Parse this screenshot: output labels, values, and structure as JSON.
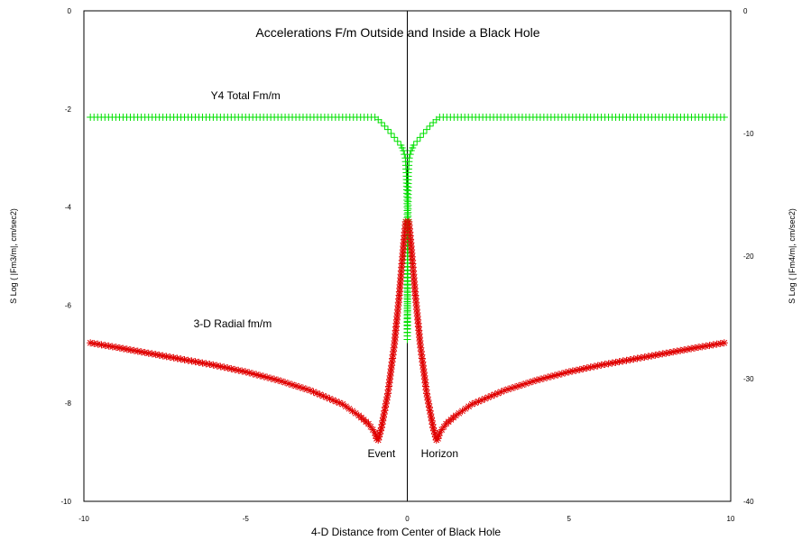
{
  "chart_data": {
    "type": "scatter",
    "title": "Accelerations F/m Outside and Inside a Black Hole",
    "xlabel": "4-D Distance from Center of Black Hole",
    "ylabel_left": "S Log ( |Fm3/m|, cm/sec2)",
    "ylabel_right": "S Log ( |Fm4/m|, cm/sec2)",
    "xlim": [
      -10,
      10
    ],
    "ylim_left": [
      -10,
      0
    ],
    "ylim_right": [
      -40,
      0
    ],
    "x_ticks": [
      "-10",
      "-5",
      "0",
      "5",
      "10"
    ],
    "y_ticks_left": [
      "0",
      "-2",
      "-4",
      "-6",
      "-8",
      "-10"
    ],
    "y_ticks_right": [
      "0",
      "-10",
      "-20",
      "-30",
      "-40"
    ],
    "series": [
      {
        "name": "Y4 Total Fm/m",
        "color": "#00e000",
        "marker": "plus",
        "axis": "left",
        "points": [
          [
            -9.8,
            -2.17
          ],
          [
            -8.0,
            -2.17
          ],
          [
            -6.0,
            -2.17
          ],
          [
            -4.0,
            -2.17
          ],
          [
            -2.0,
            -2.17
          ],
          [
            -1.0,
            -2.17
          ],
          [
            -0.9,
            -2.22
          ],
          [
            -0.8,
            -2.28
          ],
          [
            -0.7,
            -2.35
          ],
          [
            -0.6,
            -2.42
          ],
          [
            -0.5,
            -2.5
          ],
          [
            -0.4,
            -2.58
          ],
          [
            -0.3,
            -2.66
          ],
          [
            -0.2,
            -2.74
          ],
          [
            -0.12,
            -2.85
          ],
          [
            -0.06,
            -3.0
          ],
          [
            -0.03,
            -3.3
          ],
          [
            0.0,
            -4.0
          ],
          [
            0.0,
            -5.0
          ],
          [
            0.0,
            -6.0
          ],
          [
            0.0,
            -6.7
          ],
          [
            0.03,
            -3.3
          ],
          [
            0.06,
            -3.0
          ],
          [
            0.12,
            -2.85
          ],
          [
            0.2,
            -2.74
          ],
          [
            0.3,
            -2.66
          ],
          [
            0.4,
            -2.58
          ],
          [
            0.5,
            -2.5
          ],
          [
            0.6,
            -2.42
          ],
          [
            0.7,
            -2.35
          ],
          [
            0.8,
            -2.28
          ],
          [
            0.9,
            -2.22
          ],
          [
            1.0,
            -2.17
          ],
          [
            2.0,
            -2.17
          ],
          [
            4.0,
            -2.17
          ],
          [
            6.0,
            -2.17
          ],
          [
            8.0,
            -2.17
          ],
          [
            9.8,
            -2.17
          ]
        ]
      },
      {
        "name": "3-D Radial fm/m",
        "color": "#e00000",
        "marker": "star",
        "axis": "left",
        "points": [
          [
            -9.8,
            -6.77
          ],
          [
            -9.0,
            -6.86
          ],
          [
            -8.0,
            -6.98
          ],
          [
            -7.0,
            -7.1
          ],
          [
            -6.0,
            -7.22
          ],
          [
            -5.0,
            -7.36
          ],
          [
            -4.0,
            -7.53
          ],
          [
            -3.0,
            -7.74
          ],
          [
            -2.0,
            -8.02
          ],
          [
            -1.5,
            -8.25
          ],
          [
            -1.2,
            -8.42
          ],
          [
            -1.0,
            -8.6
          ],
          [
            -0.95,
            -8.72
          ],
          [
            -0.9,
            -8.75
          ],
          [
            -0.8,
            -8.5
          ],
          [
            -0.6,
            -7.8
          ],
          [
            -0.4,
            -6.8
          ],
          [
            -0.25,
            -5.8
          ],
          [
            -0.12,
            -4.8
          ],
          [
            -0.05,
            -4.3
          ],
          [
            0.05,
            -4.3
          ],
          [
            0.12,
            -4.8
          ],
          [
            0.25,
            -5.8
          ],
          [
            0.4,
            -6.8
          ],
          [
            0.6,
            -7.8
          ],
          [
            0.8,
            -8.5
          ],
          [
            0.9,
            -8.75
          ],
          [
            0.95,
            -8.72
          ],
          [
            1.0,
            -8.6
          ],
          [
            1.2,
            -8.42
          ],
          [
            1.5,
            -8.25
          ],
          [
            2.0,
            -8.02
          ],
          [
            3.0,
            -7.74
          ],
          [
            4.0,
            -7.53
          ],
          [
            5.0,
            -7.36
          ],
          [
            6.0,
            -7.22
          ],
          [
            7.0,
            -7.1
          ],
          [
            8.0,
            -6.98
          ],
          [
            9.0,
            -6.86
          ],
          [
            9.8,
            -6.77
          ]
        ]
      }
    ],
    "annotations": [
      {
        "text": "Y4 Total Fm/m",
        "x": -5.0,
        "y": -1.8,
        "anchor": "middle"
      },
      {
        "text": "3-D Radial fm/m",
        "x": -5.4,
        "y": -6.45,
        "anchor": "middle"
      },
      {
        "text": "Event",
        "x": -0.8,
        "y": -9.1,
        "anchor": "middle"
      },
      {
        "text": "Horizon",
        "x": 1.0,
        "y": -9.1,
        "anchor": "middle"
      }
    ],
    "zero_line_x": 0,
    "grid": false
  }
}
